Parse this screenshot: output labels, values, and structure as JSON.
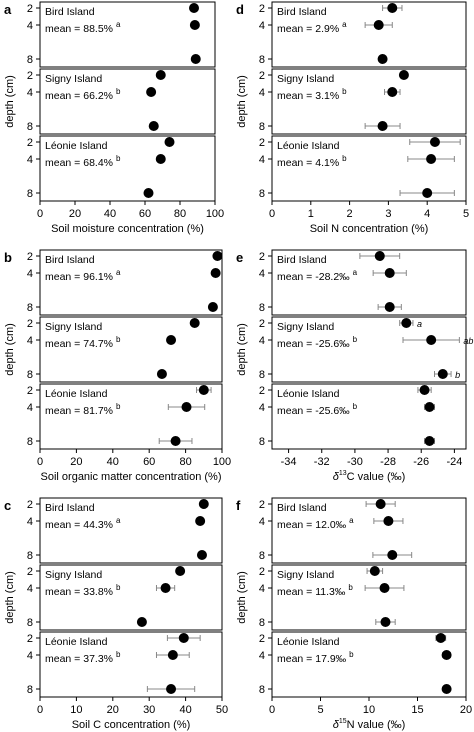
{
  "y_axis_label": "depth (cm)",
  "chart_data": [
    {
      "letter": "a",
      "type": "scatter",
      "xlabel": "Soil moisture concentration (%)",
      "xlim": [
        0,
        100
      ],
      "xticks": [
        "0",
        "20",
        "40",
        "60",
        "80",
        "100"
      ],
      "y_ticks": [
        "2",
        "4",
        "8"
      ],
      "islands": [
        {
          "name": "Bird Island",
          "mean_text": "mean = 88.5%",
          "sig": "a",
          "points": [
            {
              "depth": 2,
              "value": 88.0,
              "err": 0
            },
            {
              "depth": 4,
              "value": 88.5,
              "err": 0
            },
            {
              "depth": 8,
              "value": 89.0,
              "err": 0
            }
          ]
        },
        {
          "name": "Signy Island",
          "mean_text": "mean = 66.2%",
          "sig": "b",
          "points": [
            {
              "depth": 2,
              "value": 69.0,
              "err": 0
            },
            {
              "depth": 4,
              "value": 63.5,
              "err": 1.5
            },
            {
              "depth": 8,
              "value": 65.0,
              "err": 0
            }
          ]
        },
        {
          "name": "Léonie Island",
          "mean_text": "mean = 68.4%",
          "sig": "b",
          "points": [
            {
              "depth": 2,
              "value": 74.0,
              "err": 0
            },
            {
              "depth": 4,
              "value": 69.0,
              "err": 2.0
            },
            {
              "depth": 8,
              "value": 62.0,
              "err": 0
            }
          ]
        }
      ]
    },
    {
      "letter": "d",
      "type": "scatter",
      "xlabel": "Soil N concentration (%)",
      "xlim": [
        0,
        5
      ],
      "xticks": [
        "0",
        "1",
        "2",
        "3",
        "4",
        "5"
      ],
      "y_ticks": [
        "2",
        "4",
        "8"
      ],
      "islands": [
        {
          "name": "Bird Island",
          "mean_text": "mean = 2.9%",
          "sig": "a",
          "points": [
            {
              "depth": 2,
              "value": 3.1,
              "err": 0.25
            },
            {
              "depth": 4,
              "value": 2.75,
              "err": 0.35
            },
            {
              "depth": 8,
              "value": 2.85,
              "err": 0
            }
          ]
        },
        {
          "name": "Signy Island",
          "mean_text": "mean = 3.1%",
          "sig": "b",
          "points": [
            {
              "depth": 2,
              "value": 3.4,
              "err": 0
            },
            {
              "depth": 4,
              "value": 3.1,
              "err": 0.2
            },
            {
              "depth": 8,
              "value": 2.85,
              "err": 0.45
            }
          ]
        },
        {
          "name": "Léonie Island",
          "mean_text": "mean = 4.1%",
          "sig": "b",
          "points": [
            {
              "depth": 2,
              "value": 4.2,
              "err": 0.65
            },
            {
              "depth": 4,
              "value": 4.1,
              "err": 0.6
            },
            {
              "depth": 8,
              "value": 4.0,
              "err": 0.7
            }
          ]
        }
      ]
    },
    {
      "letter": "b",
      "type": "scatter",
      "xlabel": "Soil organic matter concentration (%)",
      "xlim": [
        0,
        100
      ],
      "xticks": [
        "0",
        "20",
        "40",
        "60",
        "80",
        "100"
      ],
      "y_ticks": [
        "2",
        "4",
        "8"
      ],
      "islands": [
        {
          "name": "Bird Island",
          "mean_text": "mean = 96.1%",
          "sig": "a",
          "points": [
            {
              "depth": 2,
              "value": 97.5,
              "err": 0
            },
            {
              "depth": 4,
              "value": 96.5,
              "err": 0
            },
            {
              "depth": 8,
              "value": 95.0,
              "err": 0
            }
          ]
        },
        {
          "name": "Signy Island",
          "mean_text": "mean = 74.7%",
          "sig": "b",
          "points": [
            {
              "depth": 2,
              "value": 85.0,
              "err": 0
            },
            {
              "depth": 4,
              "value": 72.0,
              "err": 0
            },
            {
              "depth": 8,
              "value": 67.0,
              "err": 2.0
            }
          ]
        },
        {
          "name": "Léonie Island",
          "mean_text": "mean = 81.7%",
          "sig": "b",
          "points": [
            {
              "depth": 2,
              "value": 90.0,
              "err": 4.0
            },
            {
              "depth": 4,
              "value": 80.5,
              "err": 10.0
            },
            {
              "depth": 8,
              "value": 74.5,
              "err": 9.0
            }
          ]
        }
      ]
    },
    {
      "letter": "e",
      "type": "scatter",
      "xlabel": "δ13C value (‰)",
      "xlabel_pre": "δ",
      "xlabel_sup": "13",
      "xlabel_post": "C value (‰)",
      "xlim": [
        -35,
        -23.3
      ],
      "xticks": [
        "-34",
        "-32",
        "-30",
        "-28",
        "-26",
        "-24"
      ],
      "y_ticks": [
        "2",
        "4",
        "8"
      ],
      "islands": [
        {
          "name": "Bird Island",
          "mean_text": "mean = -28.2‰",
          "sig": "a",
          "points": [
            {
              "depth": 2,
              "value": -28.5,
              "err": 1.2
            },
            {
              "depth": 4,
              "value": -27.9,
              "err": 1.0
            },
            {
              "depth": 8,
              "value": -27.9,
              "err": 0.7
            }
          ]
        },
        {
          "name": "Signy Island",
          "mean_text": "mean = -25.6‰",
          "sig": "b",
          "points": [
            {
              "depth": 2,
              "value": -26.9,
              "err": 0.4,
              "label": "a"
            },
            {
              "depth": 4,
              "value": -25.4,
              "err": 1.7,
              "label": "ab"
            },
            {
              "depth": 8,
              "value": -24.7,
              "err": 0.5,
              "label": "b"
            }
          ]
        },
        {
          "name": "Léonie Island",
          "mean_text": "mean = -25.6‰",
          "sig": "b",
          "points": [
            {
              "depth": 2,
              "value": -25.8,
              "err": 0.4
            },
            {
              "depth": 4,
              "value": -25.5,
              "err": 0.3
            },
            {
              "depth": 8,
              "value": -25.5,
              "err": 0.3
            }
          ]
        }
      ]
    },
    {
      "letter": "c",
      "type": "scatter",
      "xlabel": "Soil C concentration (%)",
      "xlim": [
        0,
        50
      ],
      "xticks": [
        "0",
        "10",
        "20",
        "30",
        "40",
        "50"
      ],
      "y_ticks": [
        "2",
        "4",
        "8"
      ],
      "islands": [
        {
          "name": "Bird Island",
          "mean_text": "mean = 44.3%",
          "sig": "a",
          "points": [
            {
              "depth": 2,
              "value": 45.0,
              "err": 0
            },
            {
              "depth": 4,
              "value": 44.0,
              "err": 0
            },
            {
              "depth": 8,
              "value": 44.5,
              "err": 0
            }
          ]
        },
        {
          "name": "Signy Island",
          "mean_text": "mean = 33.8%",
          "sig": "b",
          "points": [
            {
              "depth": 2,
              "value": 38.5,
              "err": 0
            },
            {
              "depth": 4,
              "value": 34.5,
              "err": 2.5
            },
            {
              "depth": 8,
              "value": 28.0,
              "err": 0
            }
          ]
        },
        {
          "name": "Léonie Island",
          "mean_text": "mean = 37.3%",
          "sig": "b",
          "points": [
            {
              "depth": 2,
              "value": 39.5,
              "err": 4.5
            },
            {
              "depth": 4,
              "value": 36.5,
              "err": 4.5
            },
            {
              "depth": 8,
              "value": 36.0,
              "err": 6.5
            }
          ]
        }
      ]
    },
    {
      "letter": "f",
      "type": "scatter",
      "xlabel": "δ15N value (‰)",
      "xlabel_pre": "δ",
      "xlabel_sup": "15",
      "xlabel_post": "N value (‰)",
      "xlim": [
        0,
        20
      ],
      "xticks": [
        "0",
        "5",
        "10",
        "15",
        "20"
      ],
      "y_ticks": [
        "2",
        "4",
        "8"
      ],
      "islands": [
        {
          "name": "Bird Island",
          "mean_text": "mean = 12.0‰",
          "sig": "a",
          "points": [
            {
              "depth": 2,
              "value": 11.2,
              "err": 1.5
            },
            {
              "depth": 4,
              "value": 12.0,
              "err": 1.5
            },
            {
              "depth": 8,
              "value": 12.4,
              "err": 2.0
            }
          ]
        },
        {
          "name": "Signy Island",
          "mean_text": "mean = 11.3‰",
          "sig": "b",
          "points": [
            {
              "depth": 2,
              "value": 10.6,
              "err": 0.8
            },
            {
              "depth": 4,
              "value": 11.6,
              "err": 2.0
            },
            {
              "depth": 8,
              "value": 11.7,
              "err": 1.0
            }
          ]
        },
        {
          "name": "Léonie Island",
          "mean_text": "mean = 17.9‰",
          "sig": "b",
          "points": [
            {
              "depth": 2,
              "value": 17.4,
              "err": 0.5
            },
            {
              "depth": 4,
              "value": 18.0,
              "err": 0.4
            },
            {
              "depth": 8,
              "value": 18.0,
              "err": 0
            }
          ]
        }
      ]
    }
  ]
}
